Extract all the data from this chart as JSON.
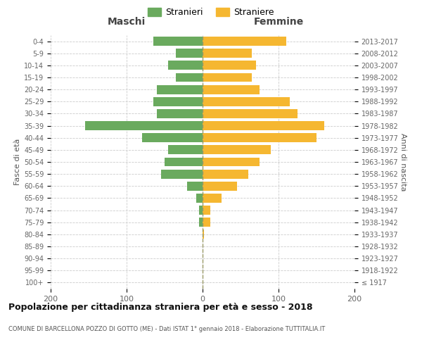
{
  "age_groups": [
    "100+",
    "95-99",
    "90-94",
    "85-89",
    "80-84",
    "75-79",
    "70-74",
    "65-69",
    "60-64",
    "55-59",
    "50-54",
    "45-49",
    "40-44",
    "35-39",
    "30-34",
    "25-29",
    "20-24",
    "15-19",
    "10-14",
    "5-9",
    "0-4"
  ],
  "birth_years": [
    "≤ 1917",
    "1918-1922",
    "1923-1927",
    "1928-1932",
    "1933-1937",
    "1938-1942",
    "1943-1947",
    "1948-1952",
    "1953-1957",
    "1958-1962",
    "1963-1967",
    "1968-1972",
    "1973-1977",
    "1978-1982",
    "1983-1987",
    "1988-1992",
    "1993-1997",
    "1998-2002",
    "2003-2007",
    "2008-2012",
    "2013-2017"
  ],
  "males": [
    0,
    0,
    0,
    0,
    0,
    5,
    5,
    8,
    20,
    55,
    50,
    45,
    80,
    155,
    60,
    65,
    60,
    35,
    45,
    35,
    65
  ],
  "females": [
    0,
    0,
    0,
    0,
    2,
    10,
    10,
    25,
    45,
    60,
    75,
    90,
    150,
    160,
    125,
    115,
    75,
    65,
    70,
    65,
    110
  ],
  "male_color": "#6aaa5e",
  "female_color": "#f5b731",
  "background_color": "#ffffff",
  "grid_color": "#cccccc",
  "dashed_color": "#999966",
  "title": "Popolazione per cittadinanza straniera per età e sesso - 2018",
  "subtitle": "COMUNE DI BARCELLONA POZZO DI GOTTO (ME) - Dati ISTAT 1° gennaio 2018 - Elaborazione TUTTITALIA.IT",
  "header_left": "Maschi",
  "header_right": "Femmine",
  "ylabel_left": "Fasce di età",
  "ylabel_right": "Anni di nascita",
  "legend_male": "Stranieri",
  "legend_female": "Straniere",
  "xlim": 200
}
